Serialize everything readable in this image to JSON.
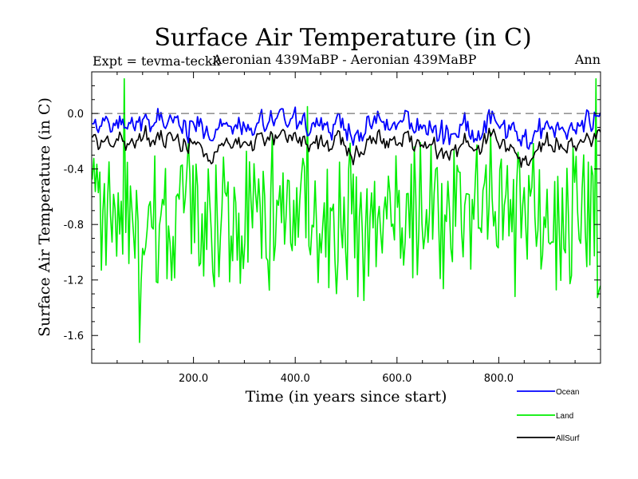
{
  "chart_data": {
    "type": "line",
    "title": "Surface Air Temperature (in C)",
    "subtitle_left": "Expt = tevma-teckk",
    "subtitle_center": "Aeronian 439MaBP - Aeronian 439MaBP",
    "subtitle_right": "Ann",
    "xlabel": "Time (in years since start)",
    "ylabel": "Surface Air Temperature (in C)",
    "xlim": [
      0,
      1000
    ],
    "ylim": [
      -1.8,
      0.3
    ],
    "xticks": [
      200,
      400,
      600,
      800
    ],
    "xtick_labels": [
      "200.0",
      "400.0",
      "600.0",
      "800.0"
    ],
    "yticks": [
      0.0,
      -0.4,
      -0.8,
      -1.2,
      -1.6
    ],
    "ytick_labels": [
      "0.0",
      "-0.4",
      "-0.8",
      "-1.2",
      "-1.6"
    ],
    "reference_line": 0.0,
    "x": {
      "start": 1,
      "end": 1000,
      "step": 3
    },
    "series": [
      {
        "name": "Ocean",
        "color": "#0000ff",
        "mean": -0.08,
        "amplitude": 0.16,
        "dips": [
          [
            230,
            -0.08
          ],
          [
            520,
            -0.07
          ],
          [
            700,
            -0.1
          ],
          [
            850,
            -0.16
          ]
        ]
      },
      {
        "name": "Land",
        "color": "#00ee00",
        "mean": -0.75,
        "amplitude": 0.95,
        "extremes": [
          [
            65,
            0.3
          ],
          [
            95,
            -1.65
          ],
          [
            425,
            0.05
          ],
          [
            990,
            0.28
          ]
        ]
      },
      {
        "name": "AllSurf",
        "color": "#000000",
        "mean": -0.2,
        "amplitude": 0.16,
        "dips": [
          [
            230,
            -0.12
          ],
          [
            520,
            -0.09
          ],
          [
            700,
            -0.12
          ],
          [
            850,
            -0.2
          ]
        ]
      }
    ],
    "legend": {
      "position": "bottom-right",
      "entries": [
        "Ocean",
        "Land",
        "AllSurf"
      ]
    }
  }
}
